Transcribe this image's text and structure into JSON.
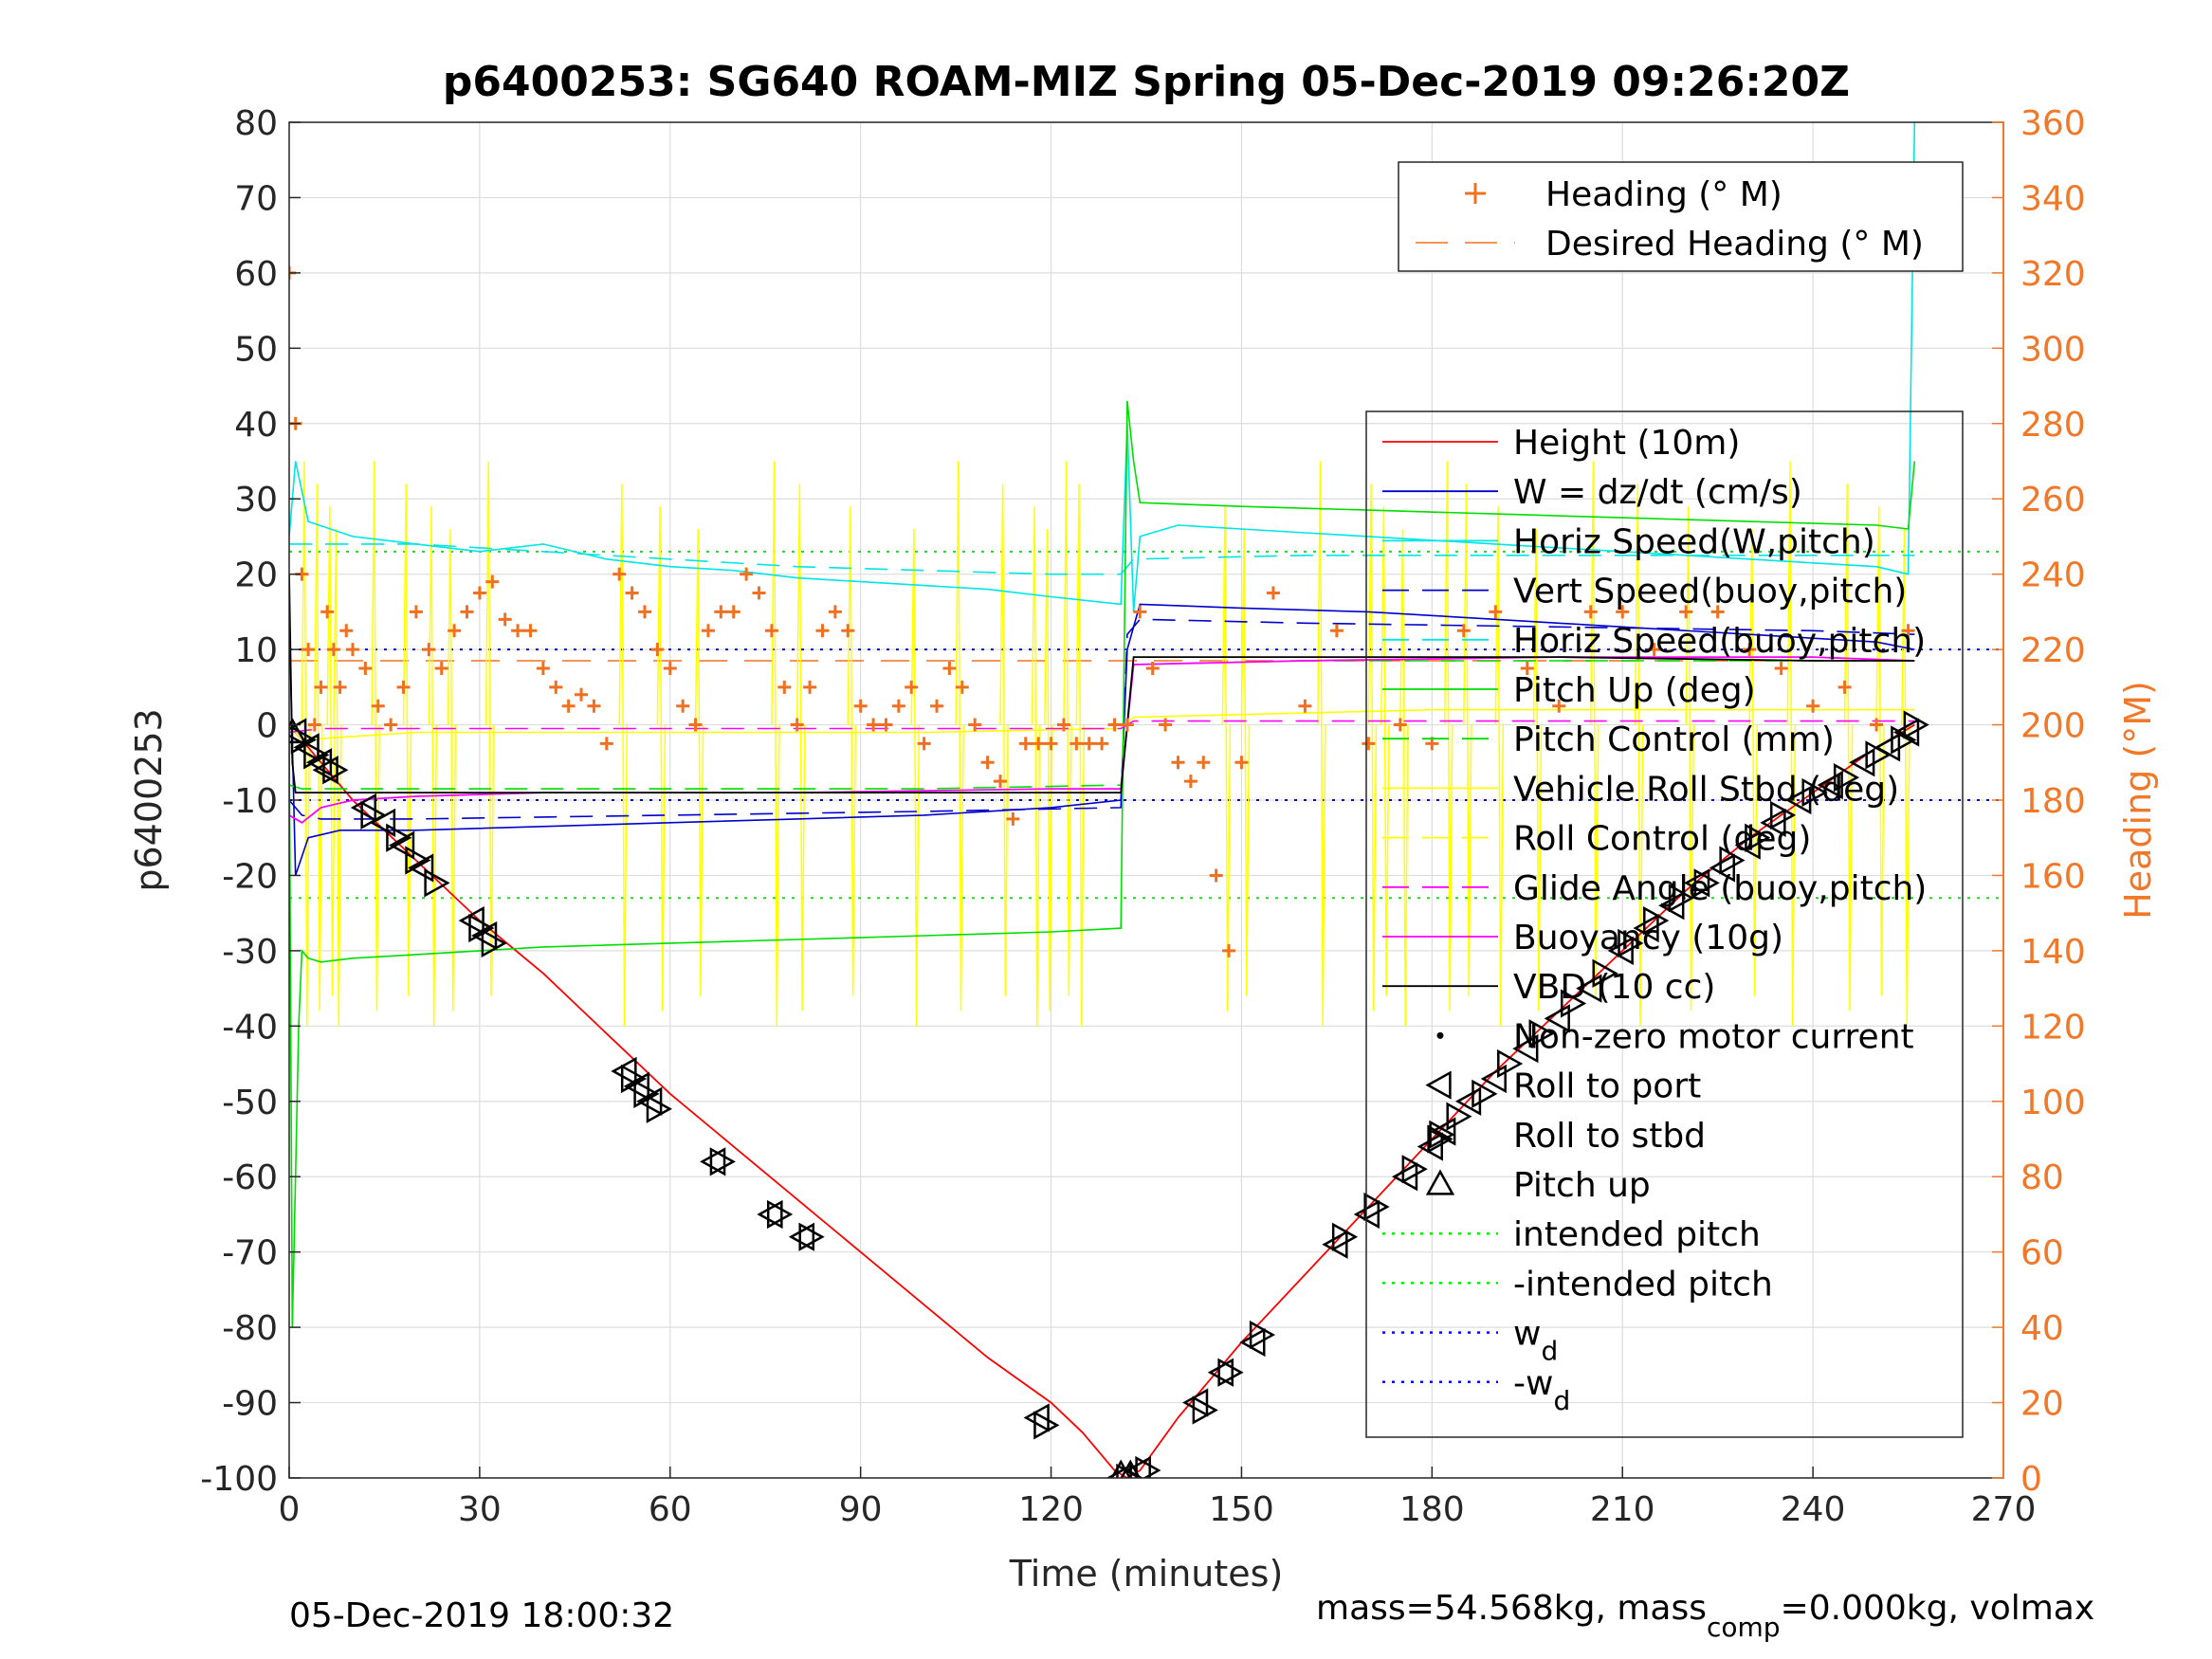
{
  "chart_data": {
    "type": "line",
    "title": "p6400253: SG640 ROAM-MIZ Spring 05-Dec-2019 09:26:20Z",
    "xlabel": "Time (minutes)",
    "ylabel": "p6400253",
    "y2label": "Heading (°M)",
    "xlim": [
      0,
      270
    ],
    "ylim": [
      -100,
      80
    ],
    "y2lim": [
      0,
      360
    ],
    "xticks": [
      "0",
      "30",
      "60",
      "90",
      "120",
      "150",
      "180",
      "210",
      "240",
      "270"
    ],
    "yticks": [
      "80",
      "70",
      "60",
      "50",
      "40",
      "30",
      "20",
      "10",
      "0",
      "-10",
      "-20",
      "-30",
      "-40",
      "-50",
      "-60",
      "-70",
      "-80",
      "-90",
      "-100"
    ],
    "y2ticks": [
      "360",
      "340",
      "320",
      "300",
      "280",
      "260",
      "240",
      "220",
      "200",
      "180",
      "160",
      "140",
      "120",
      "100",
      "80",
      "60",
      "40",
      "20",
      "0"
    ],
    "grid": true,
    "footer_left": "05-Dec-2019 18:00:32",
    "footer_right": {
      "a": "mass=54.568kg, mass",
      "sub": "comp",
      "b": "=0.000kg, volmax"
    },
    "colors": {
      "height": "#ff0000",
      "w": "#0000cc",
      "horiz_speed": "#00e5e5",
      "pitch": "#00dd00",
      "roll": "#ffff00",
      "glide": "#ff00ff",
      "vbd": "#000000",
      "heading": "#f07020",
      "axis2": "#f07828"
    },
    "legend_top": {
      "placement": "top-right",
      "entries": [
        {
          "label": "Heading (° M)",
          "marker": "plus",
          "color": "#f07020"
        },
        {
          "label": "Desired Heading (° M)",
          "marker": "dash",
          "color": "#f07020"
        }
      ]
    },
    "legend_main": {
      "placement": "right",
      "entries": [
        {
          "label": "Height (10m)",
          "style": "solid",
          "color": "#ff0000"
        },
        {
          "label": "W = dz/dt (cm/s)",
          "style": "solid",
          "color": "#0000cc"
        },
        {
          "label": "Horiz Speed(W,pitch)",
          "style": "solid",
          "color": "#00e5e5"
        },
        {
          "label": "Vert Speed(buoy,pitch)",
          "style": "dash",
          "color": "#0000cc"
        },
        {
          "label": "Horiz Speed(buoy,pitch)",
          "style": "dash",
          "color": "#00e5e5"
        },
        {
          "label": "Pitch Up (deg)",
          "style": "solid",
          "color": "#00dd00"
        },
        {
          "label": "Pitch Control (mm)",
          "style": "dash",
          "color": "#00dd00"
        },
        {
          "label": "Vehicle Roll Stbd (deg)",
          "style": "solid",
          "color": "#ffff00"
        },
        {
          "label": "Roll Control (deg)",
          "style": "dash",
          "color": "#ffff00"
        },
        {
          "label": "Glide Angle (buoy,pitch)",
          "style": "dash",
          "color": "#ff00ff"
        },
        {
          "label": "Buoyancy (10g)",
          "style": "solid",
          "color": "#ff00ff"
        },
        {
          "label": "VBD (10 cc)",
          "style": "solid",
          "color": "#000000"
        },
        {
          "label": "Non-zero motor current",
          "style": "dot-marker",
          "color": "#000000"
        },
        {
          "label": "Roll to port",
          "style": "tri-left",
          "color": "#000000"
        },
        {
          "label": "Roll to stbd",
          "style": "tri-right",
          "color": "#000000"
        },
        {
          "label": "Pitch up",
          "style": "tri-up",
          "color": "#000000"
        },
        {
          "label": "intended pitch",
          "style": "dotted",
          "color": "#00ee00"
        },
        {
          "label": "-intended pitch",
          "style": "dotted",
          "color": "#00ee00"
        },
        {
          "label": "w",
          "sub": "d",
          "style": "dotted",
          "color": "#0000ff"
        },
        {
          "label": "-w",
          "sub": "d",
          "style": "dotted",
          "color": "#0000ff"
        }
      ]
    },
    "reference_lines": {
      "intended_pitch": 23,
      "neg_intended_pitch": -23,
      "wd": 10,
      "neg_wd": -10
    },
    "series": [
      {
        "name": "Height (10m)",
        "x": [
          0,
          5,
          10,
          20,
          30,
          40,
          50,
          60,
          70,
          80,
          90,
          100,
          110,
          120,
          125,
          130,
          132,
          134,
          140,
          150,
          160,
          170,
          180,
          190,
          200,
          210,
          220,
          230,
          240,
          250,
          256
        ],
        "y": [
          0,
          -5,
          -10,
          -18,
          -26,
          -33,
          -41,
          -49,
          -56,
          -63,
          -70,
          -77,
          -84,
          -90,
          -94,
          -99,
          -100,
          -99,
          -92,
          -82,
          -73,
          -64,
          -55,
          -46,
          -38,
          -30,
          -22,
          -15,
          -9,
          -3,
          0
        ]
      },
      {
        "name": "W = dz/dt (cm/s)",
        "x": [
          0,
          1,
          3,
          8,
          20,
          40,
          60,
          80,
          100,
          120,
          131,
          132,
          134,
          150,
          170,
          190,
          210,
          230,
          250,
          256
        ],
        "y": [
          15,
          -20,
          -15,
          -14,
          -14,
          -13.5,
          -13,
          -12.5,
          -12,
          -11,
          -10,
          10,
          16,
          15.5,
          15,
          14,
          13,
          12,
          11,
          10
        ]
      },
      {
        "name": "Horiz Speed(W,pitch)",
        "x": [
          0,
          1,
          3,
          10,
          20,
          30,
          40,
          50,
          60,
          70,
          80,
          90,
          100,
          110,
          120,
          131,
          132,
          133,
          134,
          140,
          150,
          160,
          170,
          180,
          190,
          200,
          210,
          220,
          230,
          240,
          250,
          255,
          256
        ],
        "y": [
          25,
          35,
          27,
          25,
          24,
          23,
          24,
          22,
          21,
          20.5,
          19.5,
          19,
          18.5,
          18,
          17,
          16,
          40,
          15,
          25,
          26.5,
          26,
          25.5,
          25,
          24.5,
          24,
          23.5,
          23,
          22.5,
          22,
          21.5,
          21,
          20,
          80
        ]
      },
      {
        "name": "Vert Speed(buoy,pitch)",
        "x": [
          0,
          2,
          5,
          20,
          60,
          100,
          131,
          132,
          134,
          160,
          200,
          240,
          256
        ],
        "y": [
          -10,
          -12,
          -12.5,
          -12.5,
          -12,
          -11.5,
          -11,
          12,
          14,
          13.5,
          13,
          12.5,
          12
        ]
      },
      {
        "name": "Horiz Speed(buoy,pitch)",
        "x": [
          0,
          3,
          20,
          40,
          60,
          80,
          100,
          120,
          131,
          133,
          160,
          200,
          240,
          256
        ],
        "y": [
          24,
          24,
          24,
          23,
          22,
          21,
          20.5,
          20,
          20,
          22,
          22.5,
          22.5,
          22.5,
          22.5
        ]
      },
      {
        "name": "Pitch Up (deg)",
        "x": [
          0,
          0.5,
          1,
          1.5,
          2,
          3,
          5,
          10,
          20,
          30,
          40,
          60,
          80,
          100,
          120,
          131,
          132,
          133,
          134,
          150,
          170,
          190,
          210,
          230,
          250,
          255,
          256
        ],
        "y": [
          0,
          -80,
          -60,
          -40,
          -30,
          -31,
          -31.5,
          -31,
          -30.5,
          -30,
          -29.5,
          -29,
          -28.5,
          -28,
          -27.5,
          -27,
          43,
          35,
          29.5,
          29,
          28.5,
          28,
          27.5,
          27,
          26.5,
          26,
          35
        ]
      },
      {
        "name": "Pitch Control (mm)",
        "x": [
          0,
          2,
          20,
          60,
          100,
          131,
          133,
          160,
          200,
          256
        ],
        "y": [
          -8,
          -8.5,
          -8.5,
          -8.5,
          -8.5,
          -8,
          8,
          8.5,
          8.5,
          8.5
        ]
      },
      {
        "name": "Vehicle Roll Stbd (deg)",
        "x": [
          0,
          2,
          20,
          60,
          100,
          131,
          133,
          180,
          220,
          256
        ],
        "y": [
          0,
          -2,
          -1,
          -1,
          -1,
          -0.5,
          1,
          2,
          2,
          2
        ]
      },
      {
        "name": "Glide Angle (buoy,pitch)",
        "x": [
          0,
          5,
          60,
          131,
          133,
          200,
          256
        ],
        "y": [
          -1,
          -0.5,
          -0.5,
          -0.5,
          0.5,
          0.5,
          0.5
        ]
      },
      {
        "name": "Buoyancy (10g)",
        "x": [
          0,
          2,
          5,
          10,
          20,
          40,
          80,
          120,
          131,
          133,
          160,
          200,
          240,
          256
        ],
        "y": [
          -12,
          -13,
          -11,
          -10,
          -9.5,
          -9,
          -9,
          -8.5,
          -8.5,
          8,
          8.5,
          9,
          9,
          8.5
        ]
      },
      {
        "name": "VBD (10 cc)",
        "x": [
          0,
          0.5,
          1,
          2,
          5,
          20,
          60,
          100,
          131,
          133,
          160,
          200,
          240,
          256
        ],
        "y": [
          20,
          -5,
          -9,
          -9,
          -9,
          -9,
          -9,
          -9,
          -9,
          9,
          9,
          9,
          8.5,
          8.5
        ]
      }
    ],
    "heading": {
      "name": "Heading (° M)",
      "x": [
        0,
        1,
        2,
        3,
        4,
        5,
        6,
        7,
        8,
        9,
        10,
        12,
        14,
        16,
        18,
        20,
        22,
        24,
        26,
        28,
        30,
        32,
        34,
        36,
        38,
        40,
        42,
        44,
        46,
        48,
        50,
        52,
        54,
        56,
        58,
        60,
        62,
        64,
        66,
        68,
        70,
        72,
        74,
        76,
        78,
        80,
        82,
        84,
        86,
        88,
        90,
        92,
        94,
        96,
        98,
        100,
        102,
        104,
        106,
        108,
        110,
        112,
        114,
        116,
        118,
        120,
        122,
        124,
        126,
        128,
        130,
        132,
        134,
        136,
        138,
        140,
        142,
        144,
        146,
        148,
        150,
        155,
        160,
        165,
        170,
        175,
        180,
        185,
        190,
        195,
        200,
        205,
        210,
        215,
        220,
        225,
        230,
        235,
        240,
        245,
        250,
        255
      ],
      "y": [
        320,
        280,
        240,
        220,
        200,
        210,
        230,
        220,
        210,
        225,
        220,
        215,
        205,
        200,
        210,
        230,
        220,
        215,
        225,
        230,
        235,
        238,
        228,
        225,
        225,
        215,
        210,
        205,
        208,
        205,
        195,
        240,
        235,
        230,
        220,
        215,
        205,
        200,
        225,
        230,
        230,
        240,
        235,
        225,
        210,
        200,
        210,
        225,
        230,
        225,
        205,
        200,
        200,
        205,
        210,
        195,
        205,
        215,
        210,
        200,
        190,
        185,
        175,
        195,
        195,
        195,
        200,
        195,
        195,
        195,
        200,
        200,
        230,
        215,
        200,
        190,
        185,
        190,
        160,
        140,
        190,
        235,
        205,
        225,
        195,
        200,
        195,
        225,
        230,
        215,
        205,
        230,
        230,
        220,
        230,
        230,
        220,
        215,
        205,
        210,
        200,
        225
      ]
    },
    "desired_heading": 217,
    "roll_port_markers": [
      [
        1,
        -1
      ],
      [
        3,
        -3
      ],
      [
        5,
        -5
      ],
      [
        6,
        -6
      ],
      [
        12,
        -11
      ],
      [
        15,
        -13
      ],
      [
        18,
        -16
      ],
      [
        21,
        -19
      ],
      [
        29,
        -26
      ],
      [
        31,
        -28
      ],
      [
        53,
        -46
      ],
      [
        55,
        -48
      ],
      [
        57,
        -50
      ],
      [
        67,
        -58
      ],
      [
        76,
        -65
      ],
      [
        81,
        -68
      ],
      [
        118,
        -92
      ],
      [
        131,
        -100
      ],
      [
        134,
        -99
      ],
      [
        143,
        -90
      ],
      [
        147,
        -86
      ],
      [
        152,
        -82
      ],
      [
        165,
        -69
      ],
      [
        170,
        -65
      ],
      [
        176,
        -60
      ],
      [
        180,
        -56
      ],
      [
        182,
        -54
      ],
      [
        186,
        -50
      ],
      [
        190,
        -47
      ],
      [
        195,
        -43
      ],
      [
        200,
        -39
      ],
      [
        205,
        -35
      ],
      [
        210,
        -30
      ],
      [
        214,
        -27
      ],
      [
        218,
        -24
      ],
      [
        222,
        -21
      ],
      [
        226,
        -19
      ],
      [
        230,
        -16
      ],
      [
        234,
        -13
      ],
      [
        238,
        -10
      ],
      [
        243,
        -8
      ],
      [
        248,
        -5
      ],
      [
        252,
        -3
      ],
      [
        255,
        -1
      ]
    ],
    "roll_stbd_markers": [
      [
        2,
        -2
      ],
      [
        4,
        -4
      ],
      [
        7,
        -6
      ],
      [
        13,
        -12
      ],
      [
        17,
        -15
      ],
      [
        20,
        -18
      ],
      [
        23,
        -21
      ],
      [
        30,
        -27
      ],
      [
        32,
        -29
      ],
      [
        54,
        -47
      ],
      [
        56,
        -49
      ],
      [
        58,
        -51
      ],
      [
        68,
        -58
      ],
      [
        77,
        -65
      ],
      [
        82,
        -68
      ],
      [
        119,
        -93
      ],
      [
        132,
        -100
      ],
      [
        135,
        -99
      ],
      [
        144,
        -91
      ],
      [
        148,
        -86
      ],
      [
        153,
        -81
      ],
      [
        166,
        -68
      ],
      [
        171,
        -64
      ],
      [
        177,
        -59
      ],
      [
        181,
        -55
      ],
      [
        184,
        -52
      ],
      [
        188,
        -49
      ],
      [
        192,
        -45
      ],
      [
        197,
        -41
      ],
      [
        202,
        -37
      ],
      [
        207,
        -33
      ],
      [
        211,
        -29
      ],
      [
        215,
        -26
      ],
      [
        219,
        -23
      ],
      [
        223,
        -21
      ],
      [
        227,
        -18
      ],
      [
        231,
        -15
      ],
      [
        235,
        -12
      ],
      [
        240,
        -9
      ],
      [
        245,
        -7
      ],
      [
        250,
        -4
      ],
      [
        254,
        -2
      ],
      [
        256,
        0
      ]
    ],
    "pitch_up_markers": [
      [
        0.5,
        -1
      ],
      [
        131,
        -99.5
      ],
      [
        132.5,
        -99.5
      ]
    ]
  }
}
